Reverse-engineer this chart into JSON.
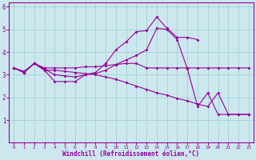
{
  "background_color": "#cce8ee",
  "line_color": "#990099",
  "grid_color": "#99cccc",
  "xlabel": "Windchill (Refroidissement éolien,°C)",
  "xlim": [
    -0.5,
    23.5
  ],
  "ylim": [
    0,
    6.2
  ],
  "xticks": [
    0,
    1,
    2,
    3,
    4,
    5,
    6,
    7,
    8,
    9,
    10,
    11,
    12,
    13,
    14,
    15,
    16,
    17,
    18,
    19,
    20,
    21,
    22,
    23
  ],
  "yticks": [
    1,
    2,
    3,
    4,
    5,
    6
  ],
  "series": [
    {
      "x": [
        0,
        1,
        2,
        3,
        4,
        5,
        6,
        7,
        8,
        9,
        10,
        11,
        12,
        13,
        14,
        15,
        16,
        17,
        18
      ],
      "y": [
        3.3,
        3.1,
        3.5,
        3.2,
        2.7,
        2.7,
        2.7,
        3.0,
        3.1,
        3.5,
        4.1,
        4.45,
        4.9,
        4.95,
        5.55,
        5.05,
        4.65,
        4.65,
        4.55
      ]
    },
    {
      "x": [
        0,
        1,
        2,
        3,
        4,
        5,
        6,
        7,
        8,
        9,
        10,
        11,
        12,
        13,
        14,
        15,
        16,
        17,
        18,
        19,
        20,
        21,
        22,
        23
      ],
      "y": [
        3.3,
        3.15,
        3.5,
        3.3,
        3.3,
        3.3,
        3.3,
        3.35,
        3.35,
        3.4,
        3.45,
        3.5,
        3.5,
        3.3,
        3.3,
        3.3,
        3.3,
        3.3,
        3.3,
        3.3,
        3.3,
        3.3,
        3.3,
        3.3
      ]
    },
    {
      "x": [
        0,
        1,
        2,
        3,
        4,
        5,
        6,
        7,
        8,
        9,
        10,
        11,
        12,
        13,
        14,
        15,
        16,
        17,
        18,
        19,
        20,
        21,
        22,
        23
      ],
      "y": [
        3.3,
        3.1,
        3.5,
        3.25,
        3.0,
        2.95,
        2.9,
        3.0,
        3.05,
        3.2,
        3.45,
        3.65,
        3.85,
        4.1,
        5.05,
        5.0,
        4.55,
        3.25,
        1.6,
        2.2,
        1.25,
        1.25,
        1.25,
        1.25
      ]
    },
    {
      "x": [
        0,
        1,
        2,
        3,
        4,
        5,
        6,
        7,
        8,
        9,
        10,
        11,
        12,
        13,
        14,
        15,
        16,
        17,
        18,
        19,
        20,
        21,
        22,
        23
      ],
      "y": [
        3.3,
        3.1,
        3.5,
        3.2,
        3.2,
        3.15,
        3.1,
        3.05,
        3.0,
        2.9,
        2.8,
        2.65,
        2.5,
        2.35,
        2.2,
        2.1,
        1.95,
        1.85,
        1.7,
        1.6,
        2.2,
        1.25,
        1.25,
        1.25
      ]
    }
  ]
}
